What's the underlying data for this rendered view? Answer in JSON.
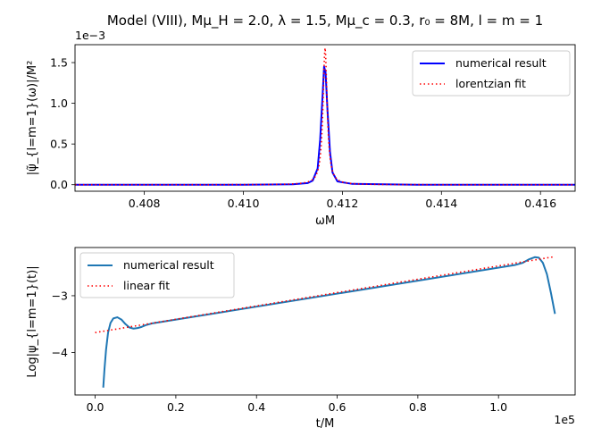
{
  "figure_title": "Model (VIII), Mμ_H = 2.0, λ = 1.5, Mμ_c = 0.3, r₀ = 8M, l = m = 1",
  "chart_data": [
    {
      "type": "line",
      "title": "Model (VIII), Mμ_H = 2.0, λ = 1.5, Mμ_c = 0.3, r₀ = 8M, l = m = 1",
      "xlabel": "ωM",
      "ylabel": "|ψ̃_{l=m=1}(ω)|/M²",
      "offset_text": "1e−3",
      "xlim": [
        0.4066,
        0.4167
      ],
      "ylim": [
        -0.08,
        1.72
      ],
      "xticks": [
        0.408,
        0.41,
        0.412,
        0.414,
        0.416
      ],
      "xtick_labels": [
        "0.408",
        "0.410",
        "0.412",
        "0.414",
        "0.416"
      ],
      "yticks": [
        0.0,
        0.5,
        1.0,
        1.5
      ],
      "ytick_labels": [
        "0.0",
        "0.5",
        "1.0",
        "1.5"
      ],
      "legend_position": "top-right",
      "series": [
        {
          "name": "numerical result",
          "color": "#0000ff",
          "style": "solid",
          "x": [
            0.4066,
            0.41,
            0.411,
            0.4113,
            0.4114,
            0.4115,
            0.41155,
            0.4116,
            0.41163,
            0.41166,
            0.4117,
            0.41175,
            0.4118,
            0.4119,
            0.4122,
            0.4135,
            0.4167
          ],
          "y": [
            0.0,
            0.0,
            0.005,
            0.02,
            0.05,
            0.2,
            0.55,
            1.1,
            1.45,
            1.38,
            0.9,
            0.4,
            0.15,
            0.04,
            0.01,
            0.0,
            0.0
          ]
        },
        {
          "name": "lorentzian fit",
          "color": "#ff0000",
          "style": "dotted",
          "lorentz": {
            "center": 0.41165,
            "amplitude": 1.68,
            "half_width": 5e-05
          },
          "x_range": [
            0.4066,
            0.4167
          ]
        }
      ]
    },
    {
      "type": "line",
      "title": "",
      "xlabel": "t/M",
      "ylabel": "Log|ψ_{l=m=1}(t)|",
      "offset_text": "1e5",
      "xlim": [
        -0.05,
        1.19
      ],
      "ylim": [
        -4.75,
        -2.15
      ],
      "xticks": [
        0.0,
        0.2,
        0.4,
        0.6,
        0.8,
        1.0
      ],
      "xtick_labels": [
        "0.0",
        "0.2",
        "0.4",
        "0.6",
        "0.8",
        "1.0"
      ],
      "yticks": [
        -4,
        -3
      ],
      "ytick_labels": [
        "−4",
        "−3"
      ],
      "legend_position": "top-left",
      "series": [
        {
          "name": "numerical result",
          "color": "#1f77b4",
          "style": "solid",
          "x": [
            0.02,
            0.023,
            0.027,
            0.032,
            0.038,
            0.045,
            0.055,
            0.065,
            0.075,
            0.085,
            0.095,
            0.105,
            0.115,
            0.125,
            0.14,
            1.04,
            1.06,
            1.075,
            1.09,
            1.1,
            1.11,
            1.12,
            1.13,
            1.14
          ],
          "y": [
            -4.62,
            -4.3,
            -3.95,
            -3.65,
            -3.48,
            -3.4,
            -3.38,
            -3.42,
            -3.5,
            -3.56,
            -3.58,
            -3.57,
            -3.55,
            -3.52,
            -3.49,
            -2.46,
            -2.42,
            -2.36,
            -2.32,
            -2.33,
            -2.42,
            -2.62,
            -2.95,
            -3.32
          ]
        },
        {
          "name": "linear fit",
          "color": "#ff0000",
          "style": "dotted",
          "x": [
            0.0,
            1.14
          ],
          "y": [
            -3.65,
            -2.31
          ]
        }
      ]
    }
  ]
}
